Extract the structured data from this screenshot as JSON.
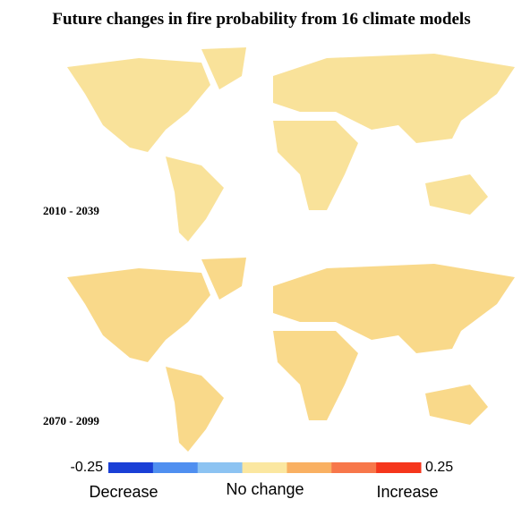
{
  "header": {
    "title": "Future changes in fire probability from 16 climate models"
  },
  "maps": [
    {
      "period": "2010 - 2039"
    },
    {
      "period": "2070 - 2099"
    }
  ],
  "colorbar": {
    "min": -0.25,
    "max": 0.25,
    "colors": [
      "#1a3fd6",
      "#4f8ff0",
      "#8cc3f2",
      "#fbe7a0",
      "#f9b062",
      "#f7774a",
      "#f5361c"
    ],
    "labels": {
      "low": "Decrease",
      "mid": "No change",
      "high": "Increase"
    }
  }
}
